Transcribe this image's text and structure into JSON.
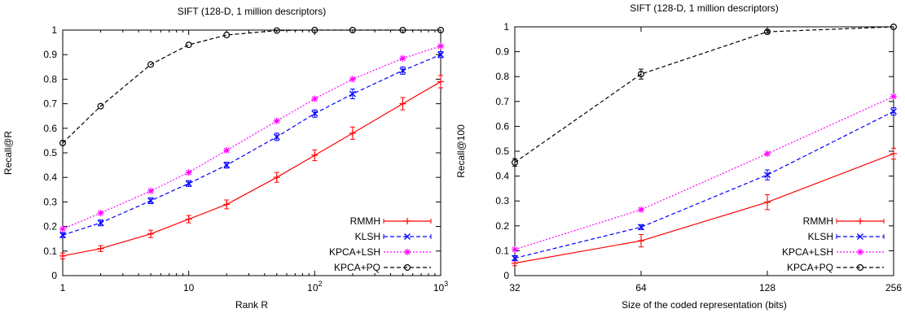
{
  "chart_data": [
    {
      "type": "line",
      "title": "SIFT (128-D, 1 million descriptors)",
      "xlabel": "Rank R",
      "ylabel": "Recall@R",
      "xscale": "log",
      "xlim": [
        1,
        1000
      ],
      "ylim": [
        0,
        1
      ],
      "x_ticks": [
        {
          "v": 1,
          "label": "1",
          "sup": ""
        },
        {
          "v": 10,
          "label": "10",
          "sup": ""
        },
        {
          "v": 100,
          "label": "10",
          "sup": "2"
        },
        {
          "v": 1000,
          "label": "10",
          "sup": "3"
        }
      ],
      "y_ticks": [
        "0",
        "0.1",
        "0.2",
        "0.3",
        "0.4",
        "0.5",
        "0.6",
        "0.7",
        "0.8",
        "0.9",
        "1"
      ],
      "legend_position": "bottom-right",
      "x": [
        1,
        2,
        5,
        10,
        20,
        50,
        100,
        200,
        500,
        1000
      ],
      "series": [
        {
          "name": "RMMH",
          "color": "#ff0000",
          "dash": "solid",
          "marker": "plus",
          "values": [
            0.08,
            0.11,
            0.17,
            0.23,
            0.29,
            0.4,
            0.49,
            0.58,
            0.7,
            0.79
          ],
          "errors": [
            0.012,
            0.012,
            0.015,
            0.015,
            0.018,
            0.02,
            0.022,
            0.025,
            0.025,
            0.025
          ]
        },
        {
          "name": "KLSH",
          "color": "#0000ff",
          "dash": "dashed",
          "marker": "x",
          "values": [
            0.165,
            0.215,
            0.305,
            0.375,
            0.45,
            0.565,
            0.66,
            0.74,
            0.835,
            0.9
          ],
          "errors": [
            0.01,
            0.012,
            0.012,
            0.012,
            0.012,
            0.015,
            0.015,
            0.02,
            0.015,
            0.012
          ]
        },
        {
          "name": "KPCA+LSH",
          "color": "#ff00ff",
          "dash": "dotted",
          "marker": "star",
          "values": [
            0.19,
            0.255,
            0.345,
            0.42,
            0.51,
            0.63,
            0.72,
            0.8,
            0.885,
            0.935
          ],
          "errors": [
            0,
            0,
            0,
            0,
            0,
            0,
            0,
            0,
            0,
            0
          ]
        },
        {
          "name": "KPCA+PQ",
          "color": "#000000",
          "dash": "dashed",
          "marker": "circle",
          "values": [
            0.54,
            0.69,
            0.86,
            0.94,
            0.98,
            0.998,
            1.0,
            1.0,
            1.0,
            1.0
          ],
          "errors": [
            0,
            0,
            0,
            0,
            0,
            0,
            0,
            0,
            0,
            0
          ]
        }
      ]
    },
    {
      "type": "line",
      "title": "SIFT (128-D, 1 million descriptors)",
      "xlabel": "Size of the coded representation (bits)",
      "ylabel": "Recall@100",
      "xscale": "log2",
      "xlim": [
        32,
        256
      ],
      "ylim": [
        0,
        1
      ],
      "x_ticks": [
        {
          "v": 32,
          "label": "32",
          "sup": ""
        },
        {
          "v": 64,
          "label": "64",
          "sup": ""
        },
        {
          "v": 128,
          "label": "128",
          "sup": ""
        },
        {
          "v": 256,
          "label": "256",
          "sup": ""
        }
      ],
      "y_ticks": [
        "0",
        "0.1",
        "0.2",
        "0.3",
        "0.4",
        "0.5",
        "0.6",
        "0.7",
        "0.8",
        "0.9",
        "1"
      ],
      "legend_position": "bottom-right",
      "x": [
        32,
        64,
        128,
        256
      ],
      "series": [
        {
          "name": "RMMH",
          "color": "#ff0000",
          "dash": "solid",
          "marker": "plus",
          "values": [
            0.05,
            0.14,
            0.295,
            0.49
          ],
          "errors": [
            0.01,
            0.025,
            0.03,
            0.022
          ]
        },
        {
          "name": "KLSH",
          "color": "#0000ff",
          "dash": "dashed",
          "marker": "x",
          "values": [
            0.07,
            0.195,
            0.405,
            0.66
          ],
          "errors": [
            0.01,
            0.01,
            0.02,
            0.015
          ]
        },
        {
          "name": "KPCA+LSH",
          "color": "#ff00ff",
          "dash": "dotted",
          "marker": "star",
          "values": [
            0.105,
            0.265,
            0.49,
            0.72
          ],
          "errors": [
            0,
            0,
            0,
            0
          ]
        },
        {
          "name": "KPCA+PQ",
          "color": "#000000",
          "dash": "dashed",
          "marker": "circle",
          "values": [
            0.455,
            0.81,
            0.98,
            1.0
          ],
          "errors": [
            0.015,
            0.02,
            0.005,
            0
          ]
        }
      ]
    }
  ]
}
